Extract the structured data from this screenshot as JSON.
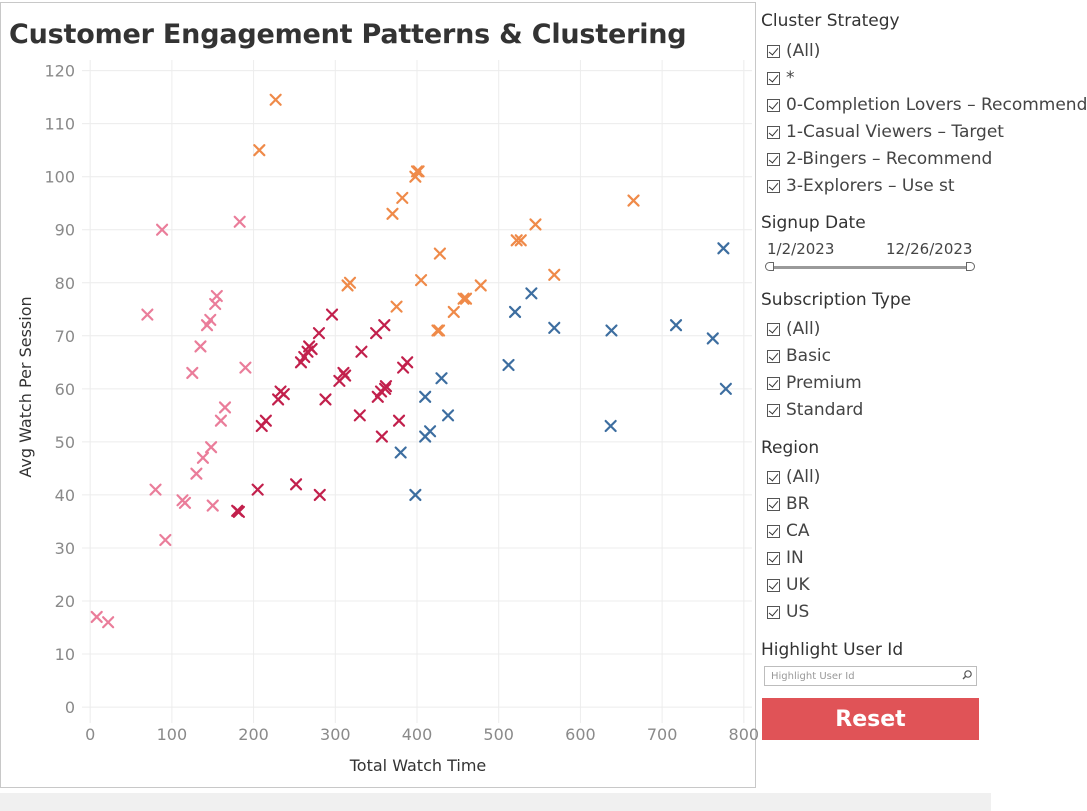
{
  "chart": {
    "title": "Customer Engagement Patterns & Clustering"
  },
  "colors": {
    "cluster0": "#ea7d9a",
    "cluster1": "#c2204c",
    "cluster2": "#ef8a49",
    "cluster3": "#3d6ea0",
    "reset": "#e05357"
  },
  "chart_data": {
    "type": "scatter",
    "title": "Customer Engagement Patterns & Clustering",
    "xlabel": "Total Watch Time",
    "ylabel": "Avg Watch Per Session",
    "xlim": [
      -10,
      810
    ],
    "ylim": [
      -3,
      122
    ],
    "xticks": [
      "0",
      "100",
      "200",
      "300",
      "400",
      "500",
      "600",
      "700",
      "800"
    ],
    "yticks": [
      "0",
      "10",
      "20",
      "30",
      "40",
      "50",
      "60",
      "70",
      "80",
      "90",
      "100",
      "110",
      "120"
    ],
    "grid": true,
    "marker": "x",
    "series": [
      {
        "color": "#ea7d9a",
        "points": [
          [
            8,
            17
          ],
          [
            22,
            16
          ],
          [
            70,
            74
          ],
          [
            80,
            41
          ],
          [
            88,
            90
          ],
          [
            92,
            31.5
          ],
          [
            113,
            39
          ],
          [
            116,
            38.5
          ],
          [
            125,
            63
          ],
          [
            130,
            44
          ],
          [
            135,
            68
          ],
          [
            138,
            47
          ],
          [
            143,
            72
          ],
          [
            147,
            73
          ],
          [
            148,
            49
          ],
          [
            150,
            38
          ],
          [
            153,
            76
          ],
          [
            155,
            77.5
          ],
          [
            160,
            54
          ],
          [
            165,
            56.5
          ],
          [
            183,
            91.5
          ],
          [
            190,
            64
          ]
        ]
      },
      {
        "color": "#c2204c",
        "points": [
          [
            180,
            37
          ],
          [
            182,
            36.8
          ],
          [
            205,
            41
          ],
          [
            210,
            53
          ],
          [
            215,
            54
          ],
          [
            230,
            58
          ],
          [
            233,
            59.5
          ],
          [
            237,
            59
          ],
          [
            252,
            42
          ],
          [
            258,
            65
          ],
          [
            262,
            66
          ],
          [
            266,
            67
          ],
          [
            268,
            68
          ],
          [
            271,
            67.5
          ],
          [
            280,
            70.5
          ],
          [
            281,
            40
          ],
          [
            288,
            58
          ],
          [
            296,
            74
          ],
          [
            305,
            61.5
          ],
          [
            310,
            63
          ],
          [
            312,
            62.5
          ],
          [
            330,
            55
          ],
          [
            332,
            67
          ],
          [
            350,
            70.5
          ],
          [
            352,
            58.5
          ],
          [
            356,
            59.5
          ],
          [
            357,
            51
          ],
          [
            360,
            72
          ],
          [
            361,
            60
          ],
          [
            362,
            60.5
          ],
          [
            378,
            54
          ],
          [
            383,
            64
          ],
          [
            388,
            65
          ]
        ]
      },
      {
        "color": "#ef8a49",
        "points": [
          [
            207,
            105
          ],
          [
            227,
            114.5
          ],
          [
            315,
            79.5
          ],
          [
            318,
            80
          ],
          [
            370,
            93
          ],
          [
            375,
            75.5
          ],
          [
            382,
            96
          ],
          [
            398,
            100
          ],
          [
            400,
            101
          ],
          [
            402,
            101
          ],
          [
            405,
            80.5
          ],
          [
            425,
            71
          ],
          [
            427,
            71
          ],
          [
            428,
            85.5
          ],
          [
            445,
            74.5
          ],
          [
            457,
            77
          ],
          [
            460,
            77
          ],
          [
            478,
            79.5
          ],
          [
            522,
            88
          ],
          [
            527,
            88
          ],
          [
            545,
            91
          ],
          [
            568,
            81.5
          ],
          [
            665,
            95.5
          ]
        ]
      },
      {
        "color": "#3d6ea0",
        "points": [
          [
            380,
            48
          ],
          [
            398,
            40
          ],
          [
            410,
            51
          ],
          [
            410,
            58.5
          ],
          [
            416,
            52
          ],
          [
            430,
            62
          ],
          [
            438,
            55
          ],
          [
            512,
            64.5
          ],
          [
            520,
            74.5
          ],
          [
            540,
            78
          ],
          [
            568,
            71.5
          ],
          [
            637,
            53
          ],
          [
            638,
            71
          ],
          [
            717,
            72
          ],
          [
            762,
            69.5
          ],
          [
            775,
            86.5
          ],
          [
            778,
            60
          ]
        ]
      }
    ]
  },
  "sidebar": {
    "cluster": {
      "title": "Cluster Strategy",
      "items": [
        "(All)",
        "*",
        "0-Completion Lovers – Recommend",
        "1-Casual Viewers – Target",
        "2-Bingers – Recommend",
        "3-Explorers – Use st"
      ]
    },
    "signup": {
      "title": "Signup Date",
      "start": "1/2/2023",
      "end": "12/26/2023"
    },
    "subscription": {
      "title": "Subscription Type",
      "items": [
        "(All)",
        "Basic",
        "Premium",
        "Standard"
      ]
    },
    "region": {
      "title": "Region",
      "items": [
        "(All)",
        "BR",
        "CA",
        "IN",
        "UK",
        "US"
      ]
    },
    "highlight": {
      "title": "Highlight User Id",
      "placeholder": "Highlight User Id"
    },
    "reset_label": "Reset"
  }
}
